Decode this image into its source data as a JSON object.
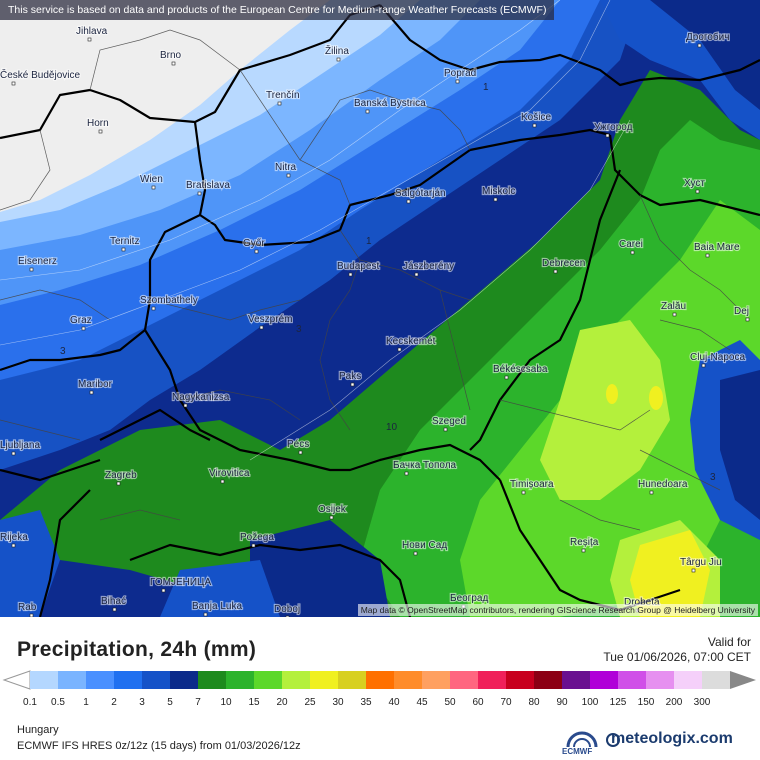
{
  "header": {
    "banner": "This service is based on data and products of the European Centre for Medium-range Weather Forecasts (ECMWF)"
  },
  "attribution": "Map data © OpenStreetMap contributors, rendering GIScience Research Group @ Heidelberg University",
  "legend": {
    "title": "Precipitation, 24h (mm)",
    "valid_label": "Valid for",
    "valid_date": "Tue 01/06/2026, 07:00 CET",
    "levels": [
      "0.1",
      "0.5",
      "1",
      "2",
      "3",
      "5",
      "7",
      "10",
      "15",
      "20",
      "25",
      "30",
      "35",
      "40",
      "45",
      "50",
      "60",
      "70",
      "80",
      "90",
      "100",
      "125",
      "150",
      "200",
      "300"
    ],
    "colors": [
      "#b4d7ff",
      "#7ab4ff",
      "#4a90ff",
      "#2070f0",
      "#1552c8",
      "#0b2a8a",
      "#1e8a1e",
      "#2cb32c",
      "#5cd82a",
      "#b4f03c",
      "#f0f020",
      "#d8d020",
      "#ff7000",
      "#ff8c2a",
      "#ffa060",
      "#ff6680",
      "#f0205a",
      "#c8001e",
      "#8c0014",
      "#6a1090",
      "#b000d8",
      "#d050e8",
      "#e690f0",
      "#f5d0fa",
      "#dcdcdc"
    ],
    "region": "Hungary",
    "model": "ECMWF IFS HRES 0z/12z (15 days) from  01/03/2026/12z",
    "logo_ecmwf": "ECMWF",
    "logo_meteologix": "meteologix.com"
  },
  "map": {
    "cities": [
      {
        "name": "Jihlava"
      },
      {
        "name": "Brno"
      },
      {
        "name": "Žilina"
      },
      {
        "name": "Poprad"
      },
      {
        "name": "Дрогобич"
      },
      {
        "name": "České Budějovice"
      },
      {
        "name": "Trenčín"
      },
      {
        "name": "Banská Bystrica"
      },
      {
        "name": "Košice"
      },
      {
        "name": "Ужгород"
      },
      {
        "name": "Horn"
      },
      {
        "name": "Nitra"
      },
      {
        "name": "Wien"
      },
      {
        "name": "Bratislava"
      },
      {
        "name": "Salgótarján"
      },
      {
        "name": "Miskolc"
      },
      {
        "name": "Хуст"
      },
      {
        "name": "Ternitz"
      },
      {
        "name": "Győr"
      },
      {
        "name": "Carei"
      },
      {
        "name": "Baia Mare"
      },
      {
        "name": "Eisenerz"
      },
      {
        "name": "Budapest"
      },
      {
        "name": "Jászberény"
      },
      {
        "name": "Debrecen"
      },
      {
        "name": "Szombathely"
      },
      {
        "name": "Zalău"
      },
      {
        "name": "Graz"
      },
      {
        "name": "Veszprém"
      },
      {
        "name": "Dej"
      },
      {
        "name": "Kecskemét"
      },
      {
        "name": "Cluj-Napoca"
      },
      {
        "name": "Paks"
      },
      {
        "name": "Békéscsaba"
      },
      {
        "name": "Maribor"
      },
      {
        "name": "Nagykanizsa"
      },
      {
        "name": "Szeged"
      },
      {
        "name": "Ljubljana"
      },
      {
        "name": "Pécs"
      },
      {
        "name": "Zagreb"
      },
      {
        "name": "Virovitica"
      },
      {
        "name": "Бачка Топола"
      },
      {
        "name": "Timișoara"
      },
      {
        "name": "Hunedoara"
      },
      {
        "name": "Osijek"
      },
      {
        "name": "Požega"
      },
      {
        "name": "Нови Сад"
      },
      {
        "name": "Reșița"
      },
      {
        "name": "Târgu Jiu"
      },
      {
        "name": "ГОМЈЕНИЦА"
      },
      {
        "name": "Bihać"
      },
      {
        "name": "Banja Luka"
      },
      {
        "name": "Doboj"
      },
      {
        "name": "Београд"
      },
      {
        "name": "Drobeta"
      },
      {
        "name": "Rab"
      },
      {
        "name": "Rijeka"
      }
    ],
    "contour_labels": [
      "1",
      "1",
      "3",
      "3",
      "10",
      "1",
      "3"
    ]
  }
}
